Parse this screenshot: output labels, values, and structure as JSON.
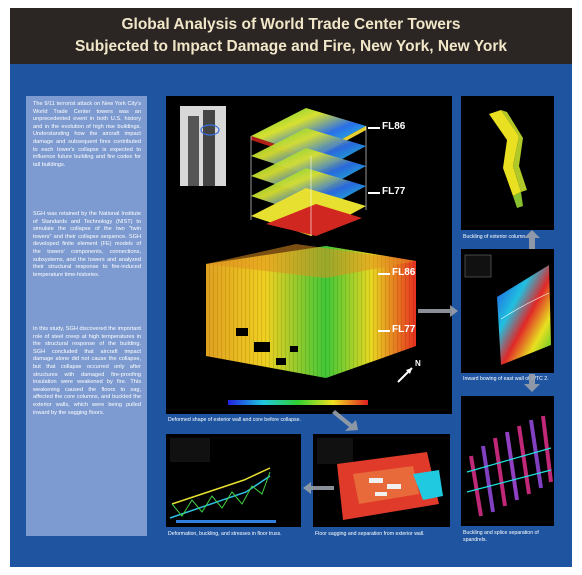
{
  "title": {
    "line1": "Global Analysis of World Trade Center Towers",
    "line2": "Subjected to Impact Damage and Fire, New York, New York"
  },
  "sidebar": {
    "paragraphs": [
      "The 9/11 terrorist attack on New York City's World Trade Center towers was an unprecedented event in both U.S. history and in the evolution of high rise buildings. Understanding how the aircraft impact damage and subsequent fires contributed to each tower's collapse is expected to influence future building and fire codes for tall buildings.",
      "SGH was retained by the National Institute of Standards and Technology (NIST) to simulate the collapse of the two \"twin towers\" and their collapse sequence. SGH developed finite element (FE) models of the towers' components, connections, subsystems, and the towers and analyzed their structural response to fire-induced temperature time-histories.",
      "In this study, SGH discovered the important role of steel creep at high temperatures in the structural response of the building. SGH concluded that aircraft impact damage alone did not cause the collapse, but that collapse occurred only after structures with damaged fire-proofing insulation were weakened by fire. This weakening caused the floors to sag, affected the core columns, and buckled the exterior walls, which were being pulled inward by the sagging floors."
    ]
  },
  "figures": {
    "main": {
      "labels": {
        "fl86_top": "FL86",
        "fl77_top": "FL77",
        "fl86_low": "FL86",
        "fl77_low": "FL77",
        "north": "N"
      },
      "caption": "Deformed shape of exterior wall and core before collapse."
    },
    "column": {
      "caption": "Buckling of exterior column."
    },
    "bowing": {
      "caption": "Inward bowing of east wall of WTC 2."
    },
    "spandrel": {
      "caption": "Buckling and splice separation of spandrels."
    },
    "truss": {
      "caption": "Deformation, buckling, and stresses in floor truss."
    },
    "floor": {
      "caption": "Floor sagging and separation from exterior wall."
    }
  },
  "colors": {
    "header_bg": "#2b2624",
    "title_text": "#f1e6c8",
    "panel_bg": "#1f55a0",
    "textbox_bg": "#7d9bd0"
  }
}
